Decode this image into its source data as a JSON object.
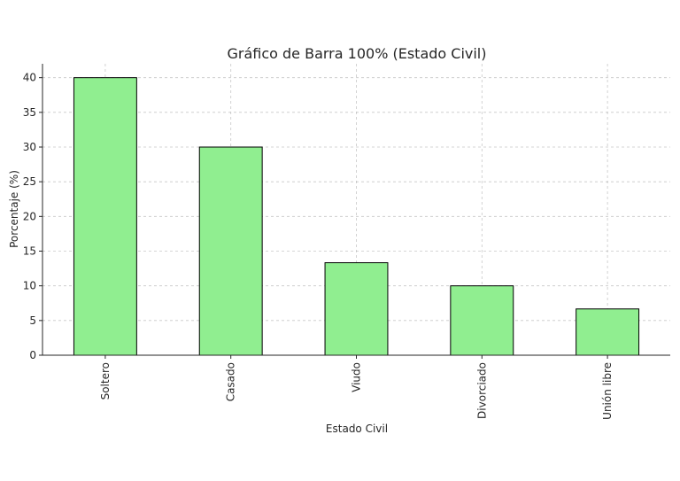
{
  "chart_data": {
    "type": "bar",
    "title": "Gráfico de Barra 100% (Estado Civil)",
    "xlabel": "Estado Civil",
    "ylabel": "Porcentaje (%)",
    "categories": [
      "Soltero",
      "Casado",
      "Viudo",
      "Divorciado",
      "Unión libre"
    ],
    "values": [
      40,
      30,
      13.33,
      10,
      6.67
    ],
    "ylim": [
      0,
      42
    ],
    "yticks": [
      0,
      5,
      10,
      15,
      20,
      25,
      30,
      35,
      40
    ],
    "grid": true,
    "bar_color": "#90ee90",
    "edge_color": "#000000"
  }
}
